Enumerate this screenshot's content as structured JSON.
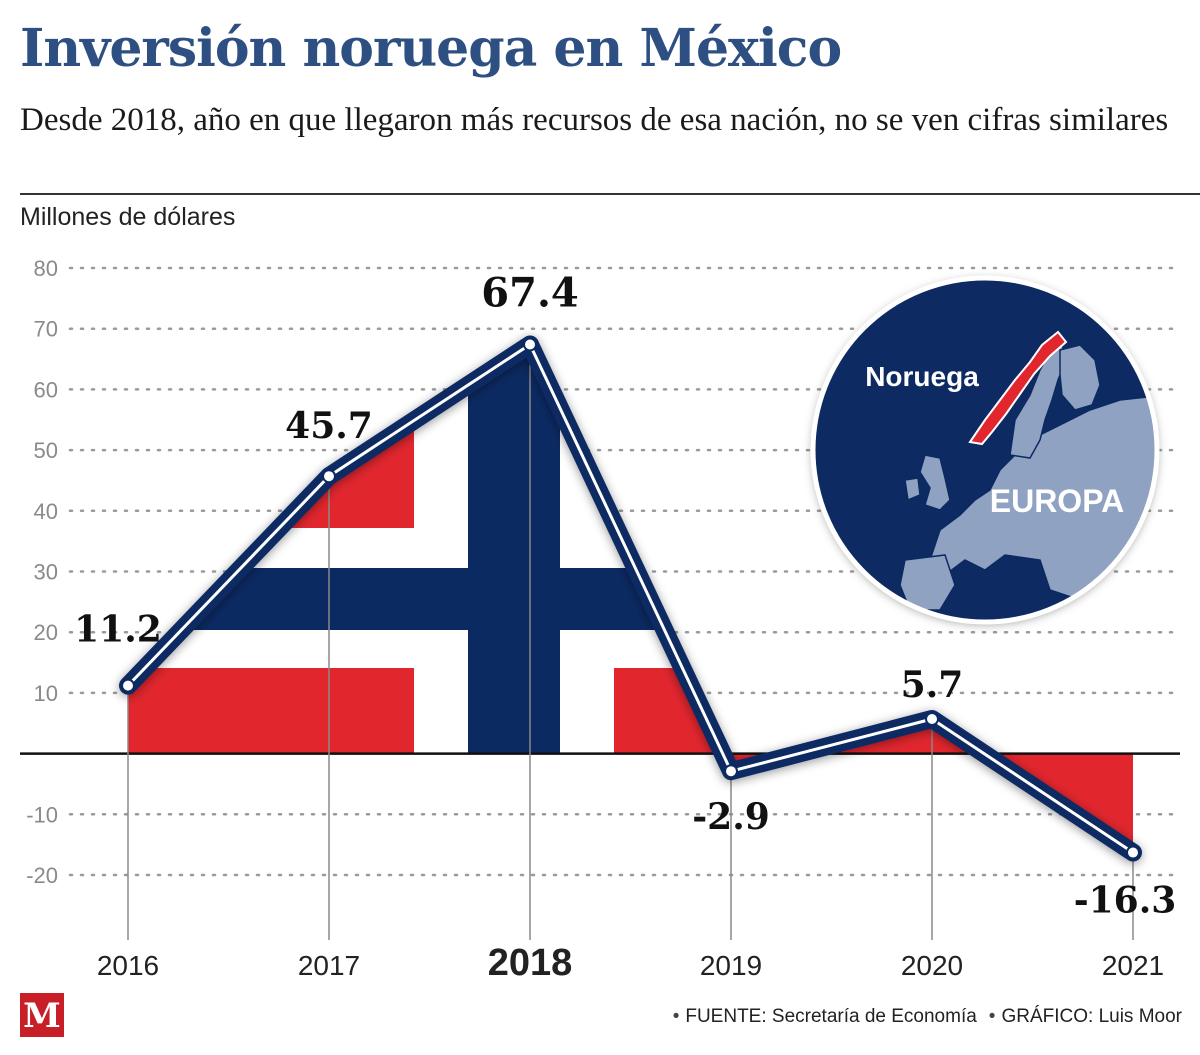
{
  "header": {
    "title": "Inversión noruega en México",
    "subtitle": "Desde 2018, año en que llegaron más recursos de esa nación, no se ven cifras similares",
    "unit_label": "Millones de dólares"
  },
  "chart_data": {
    "type": "line",
    "title": "Inversión noruega en México",
    "subtitle": "Desde 2018, año en que llegaron más recursos de esa nación, no se ven cifras similares",
    "xlabel": "",
    "ylabel": "Millones de dólares",
    "categories": [
      "2016",
      "2017",
      "2018",
      "2019",
      "2020",
      "2021"
    ],
    "values": [
      11.2,
      45.7,
      67.4,
      -2.9,
      5.7,
      -16.3
    ],
    "value_labels": [
      "11.2",
      "45.7",
      "67.4",
      "-2.9",
      "5.7",
      "-16.3"
    ],
    "highlight_category": "2018",
    "ylim": [
      -20,
      80
    ],
    "yticks": [
      "80",
      "70",
      "60",
      "50",
      "40",
      "30",
      "20",
      "10",
      "-10",
      "-20"
    ],
    "ytick_values": [
      80,
      70,
      60,
      50,
      40,
      30,
      20,
      10,
      -10,
      -20
    ],
    "grid": true,
    "line_color": "#0c2a62",
    "area_fill": "Norwegian flag pattern",
    "colors": {
      "red": "#e1262e",
      "blue": "#0c2a62",
      "white": "#ffffff"
    }
  },
  "inset_map": {
    "country_label": "Noruega",
    "region_label": "EUROPA",
    "colors": {
      "sea": "#0c2a62",
      "land": "#8fa2c2",
      "highlight": "#e1262e"
    }
  },
  "footer": {
    "source": "FUENTE: Secretaría de Economía",
    "credit": "GRÁFICO: Luis Moor",
    "logo_letter": "M",
    "logo_color": "#c81e28"
  }
}
